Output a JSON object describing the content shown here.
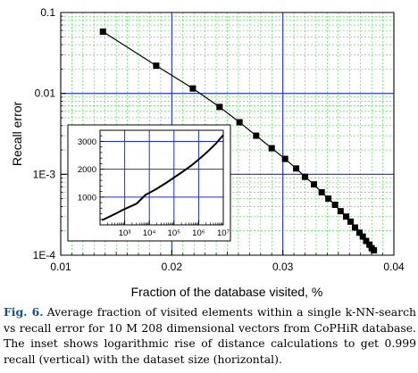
{
  "chart_data": {
    "type": "scatter",
    "title": "",
    "xlabel": "Fraction of the database visited, %",
    "ylabel": "Recall error",
    "xlim": [
      0.01,
      0.04
    ],
    "ylim": [
      0.0001,
      0.1
    ],
    "yscale": "log",
    "xticks": [
      "0.01",
      "0.02",
      "0.03",
      "0.04"
    ],
    "yticks": [
      "1E-4",
      "1E-3",
      "0.01",
      "0.1"
    ],
    "grid": true,
    "series": [
      {
        "marker": "square",
        "color": "#000000",
        "x": [
          0.0138,
          0.0186,
          0.0219,
          0.0243,
          0.0261,
          0.0276,
          0.029,
          0.0302,
          0.0312,
          0.032,
          0.0328,
          0.0335,
          0.0341,
          0.0347,
          0.0352,
          0.0357,
          0.0361,
          0.0365,
          0.0369,
          0.0372,
          0.0375,
          0.0378,
          0.038,
          0.0382
        ],
        "y": [
          0.058,
          0.022,
          0.0115,
          0.0068,
          0.0044,
          0.003,
          0.0021,
          0.00155,
          0.00118,
          0.00093,
          0.00075,
          0.0006,
          0.0005,
          0.00042,
          0.00035,
          0.0003,
          0.00026,
          0.00022,
          0.00019,
          0.00017,
          0.00015,
          0.000135,
          0.000122,
          0.000115
        ]
      }
    ],
    "inset": {
      "type": "line",
      "xscale": "log",
      "xlim": [
        100,
        10000000
      ],
      "ylim": [
        0,
        3400
      ],
      "xticks": [
        "10³",
        "10⁴",
        "10⁵",
        "10⁶",
        "10⁷"
      ],
      "yticks": [
        "1000",
        "2000",
        "3000"
      ],
      "grid": true,
      "color": "#000000",
      "x": [
        120,
        200,
        400,
        800,
        1500,
        3000,
        5000,
        7000,
        10000,
        20000,
        50000,
        100000,
        200000,
        500000,
        1000000,
        2000000,
        5000000,
        10000000
      ],
      "y": [
        170,
        260,
        390,
        530,
        640,
        760,
        950,
        1080,
        1150,
        1300,
        1520,
        1700,
        1880,
        2130,
        2350,
        2580,
        2920,
        3230
      ]
    }
  },
  "caption": {
    "label": "Fig. 6.",
    "text": "Average fraction of visited elements within a single k-NN-search vs recall error for 10 M 208 dimensional vectors from CoPHiR database. The inset shows logarithmic rise of distance calculations to get 0.999 recall (vertical) with the dataset size (horizontal)."
  }
}
